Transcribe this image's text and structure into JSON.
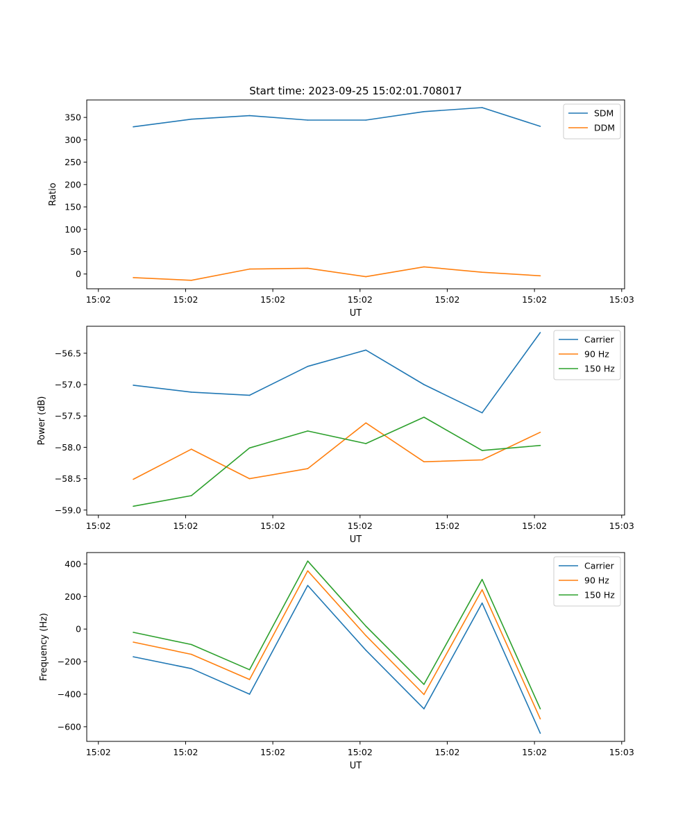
{
  "figure_title": "Start time: 2023-09-25 15:02:01.708017",
  "chart_data": [
    {
      "type": "line",
      "title": "Start time: 2023-09-25 15:02:01.708017",
      "xlabel": "UT",
      "ylabel": "Ratio",
      "x": [
        1,
        2,
        3,
        4,
        5,
        6,
        7,
        8
      ],
      "xlim": [
        0.2,
        9.45
      ],
      "x_ticks": [
        0.4,
        1.9,
        3.4,
        4.9,
        6.4,
        7.9,
        9.4
      ],
      "x_tick_labels": [
        "15:02",
        "15:02",
        "15:02",
        "15:02",
        "15:02",
        "15:02",
        "15:03"
      ],
      "ylim": [
        -33,
        389
      ],
      "y_ticks": [
        0,
        50,
        100,
        150,
        200,
        250,
        300,
        350
      ],
      "y_tick_labels": [
        "0",
        "50",
        "100",
        "150",
        "200",
        "250",
        "300",
        "350"
      ],
      "legend": "top-right",
      "series": [
        {
          "name": "SDM",
          "color": "#1f77b4",
          "values": [
            329,
            346,
            354,
            344,
            344,
            363,
            372,
            330
          ]
        },
        {
          "name": "DDM",
          "color": "#ff7f0e",
          "values": [
            -8,
            -14,
            11,
            13,
            -6,
            16,
            4,
            -4
          ]
        }
      ]
    },
    {
      "type": "line",
      "title": "",
      "xlabel": "UT",
      "ylabel": "Power (dB)",
      "x": [
        1,
        2,
        3,
        4,
        5,
        6,
        7,
        8
      ],
      "xlim": [
        0.2,
        9.45
      ],
      "x_ticks": [
        0.4,
        1.9,
        3.4,
        4.9,
        6.4,
        7.9,
        9.4
      ],
      "x_tick_labels": [
        "15:02",
        "15:02",
        "15:02",
        "15:02",
        "15:02",
        "15:02",
        "15:03"
      ],
      "ylim": [
        -59.08,
        -56.07
      ],
      "y_ticks": [
        -59.0,
        -58.5,
        -58.0,
        -57.5,
        -57.0,
        -56.5
      ],
      "y_tick_labels": [
        "−59.0",
        "−58.5",
        "−58.0",
        "−57.5",
        "−57.0",
        "−56.5"
      ],
      "legend": "top-right",
      "series": [
        {
          "name": "Carrier",
          "color": "#1f77b4",
          "values": [
            -57.01,
            -57.12,
            -57.17,
            -56.71,
            -56.45,
            -57.0,
            -57.45,
            -56.17
          ]
        },
        {
          "name": "90 Hz",
          "color": "#ff7f0e",
          "values": [
            -58.51,
            -58.03,
            -58.5,
            -58.34,
            -57.61,
            -58.23,
            -58.2,
            -57.76
          ]
        },
        {
          "name": "150 Hz",
          "color": "#2ca02c",
          "values": [
            -58.94,
            -58.77,
            -58.01,
            -57.74,
            -57.94,
            -57.52,
            -58.05,
            -57.97
          ]
        }
      ]
    },
    {
      "type": "line",
      "title": "",
      "xlabel": "UT",
      "ylabel": "Frequency (Hz)",
      "x": [
        1,
        2,
        3,
        4,
        5,
        6,
        7,
        8
      ],
      "xlim": [
        0.2,
        9.45
      ],
      "x_ticks": [
        0.4,
        1.9,
        3.4,
        4.9,
        6.4,
        7.9,
        9.4
      ],
      "x_tick_labels": [
        "15:02",
        "15:02",
        "15:02",
        "15:02",
        "15:02",
        "15:02",
        "15:03"
      ],
      "ylim": [
        -690,
        470
      ],
      "y_ticks": [
        -600,
        -400,
        -200,
        0,
        200,
        400
      ],
      "y_tick_labels": [
        "−600",
        "−400",
        "−200",
        "0",
        "200",
        "400"
      ],
      "legend": "top-right",
      "series": [
        {
          "name": "Carrier",
          "color": "#1f77b4",
          "values": [
            -170,
            -243,
            -400,
            268,
            -130,
            -490,
            160,
            -640
          ]
        },
        {
          "name": "90 Hz",
          "color": "#ff7f0e",
          "values": [
            -80,
            -155,
            -310,
            358,
            -40,
            -402,
            242,
            -552
          ]
        },
        {
          "name": "150 Hz",
          "color": "#2ca02c",
          "values": [
            -20,
            -95,
            -250,
            418,
            18,
            -340,
            305,
            -490
          ]
        }
      ]
    }
  ]
}
